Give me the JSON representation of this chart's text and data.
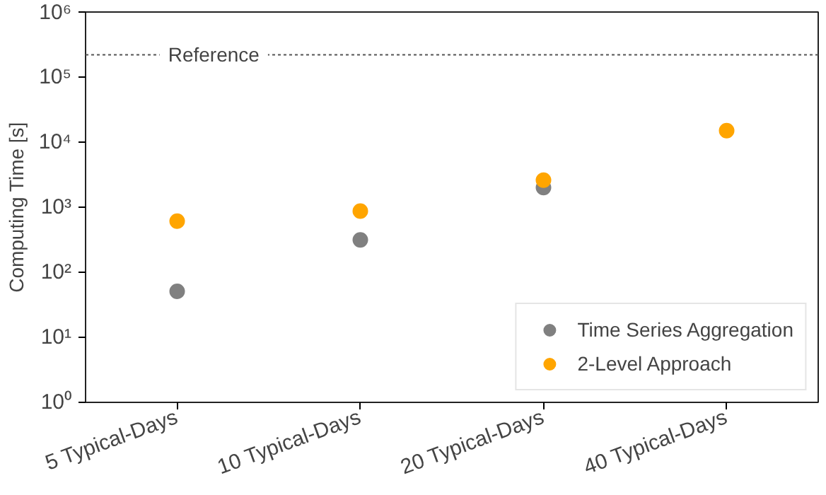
{
  "chart_data": {
    "type": "scatter",
    "ylabel": "Computing Time [s]",
    "categories": [
      "5 Typical-Days",
      "10 Typical-Days",
      "20 Typical-Days",
      "40 Typical-Days"
    ],
    "series": [
      {
        "name": "Time Series Aggregation",
        "color": "#808080",
        "values": [
          51,
          315,
          2000,
          null
        ]
      },
      {
        "name": "2-Level Approach",
        "color": "#ffa500",
        "values": [
          610,
          870,
          2600,
          15000
        ]
      }
    ],
    "log": "y",
    "ylim": [
      1,
      1000000
    ],
    "yticks": [
      {
        "value": 1,
        "label": "10⁰"
      },
      {
        "value": 10,
        "label": "10¹"
      },
      {
        "value": 100,
        "label": "10²"
      },
      {
        "value": 1000,
        "label": "10³"
      },
      {
        "value": 10000,
        "label": "10⁴"
      },
      {
        "value": 100000,
        "label": "10⁵"
      },
      {
        "value": 1000000,
        "label": "10⁶"
      }
    ],
    "ref_lines": [
      {
        "axis": "y",
        "value": 220000,
        "label": "Reference",
        "color": "#555555",
        "line_style": "dotted"
      }
    ],
    "legend": "bottom right",
    "marker": "circle",
    "grid": false
  }
}
